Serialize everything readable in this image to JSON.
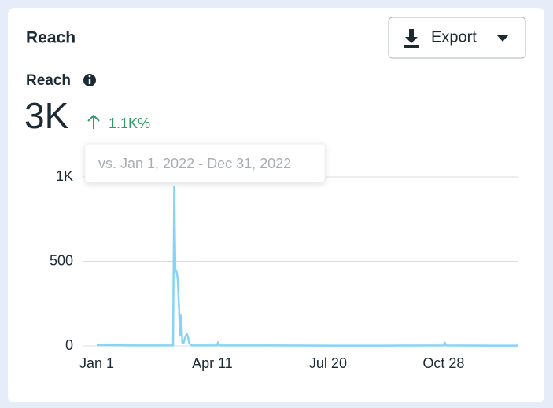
{
  "header": {
    "title": "Reach",
    "export_button": "Export"
  },
  "metric": {
    "label": "Reach",
    "value": "3K",
    "change": "1.1K%",
    "comparison": "vs. Jan 1, 2022 - Dec 31, 2022"
  },
  "chart_data": {
    "type": "line",
    "color": "#86d3f5",
    "grid": true,
    "x": [
      0,
      30,
      60,
      66,
      67,
      68,
      69,
      70,
      71,
      72,
      73,
      74,
      75,
      76,
      77,
      78,
      79,
      80,
      82,
      104,
      105,
      106,
      150,
      200,
      250,
      300,
      301,
      302,
      340,
      364
    ],
    "values": [
      5,
      3,
      3,
      3,
      940,
      450,
      440,
      400,
      250,
      60,
      180,
      20,
      15,
      40,
      60,
      70,
      50,
      15,
      3,
      3,
      22,
      3,
      3,
      2,
      2,
      3,
      20,
      3,
      2,
      2
    ],
    "xlim": [
      0,
      364
    ],
    "xticks": [
      {
        "value": 0,
        "label": "Jan 1"
      },
      {
        "value": 100,
        "label": "Apr 11"
      },
      {
        "value": 200,
        "label": "Jul 20"
      },
      {
        "value": 300,
        "label": "Oct 28"
      }
    ],
    "ylim": [
      0,
      1000
    ],
    "yticks": [
      0,
      500,
      {
        "value": 1000,
        "label": "1K"
      }
    ]
  }
}
